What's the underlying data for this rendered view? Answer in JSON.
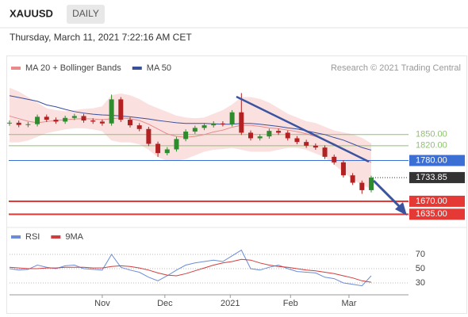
{
  "header": {
    "symbol": "XAUUSD",
    "period": "DAILY",
    "timestamp": "Thursday, March 11, 2021 7:22:16 AM CET"
  },
  "chart_data": [
    {
      "type": "candlestick",
      "credit": "Research © 2021 Trading Central",
      "xlim": [
        0,
        39
      ],
      "ylim": [
        1610,
        2010
      ],
      "up_color": "#2e8b2e",
      "down_color": "#b22222",
      "open": [
        1880,
        1882,
        1876,
        1878,
        1898,
        1890,
        1885,
        1895,
        1900,
        1888,
        1885,
        1880,
        1945,
        1890,
        1875,
        1865,
        1825,
        1800,
        1810,
        1838,
        1858,
        1868,
        1875,
        1880,
        1878,
        1910,
        1855,
        1840,
        1845,
        1860,
        1855,
        1840,
        1830,
        1820,
        1815,
        1790,
        1775,
        1740,
        1720,
        1700
      ],
      "high": [
        1888,
        1888,
        1884,
        1904,
        1904,
        1896,
        1901,
        1906,
        1906,
        1894,
        1891,
        1958,
        1951,
        1896,
        1881,
        1871,
        1831,
        1816,
        1844,
        1864,
        1874,
        1881,
        1886,
        1886,
        1916,
        1962,
        1861,
        1851,
        1866,
        1866,
        1861,
        1846,
        1836,
        1826,
        1821,
        1796,
        1781,
        1746,
        1726,
        1739
      ],
      "low": [
        1874,
        1870,
        1870,
        1872,
        1884,
        1879,
        1879,
        1889,
        1882,
        1879,
        1874,
        1874,
        1884,
        1869,
        1859,
        1819,
        1790,
        1794,
        1804,
        1832,
        1852,
        1862,
        1869,
        1872,
        1872,
        1849,
        1834,
        1834,
        1839,
        1849,
        1834,
        1824,
        1814,
        1809,
        1784,
        1769,
        1734,
        1714,
        1690,
        1694
      ],
      "close": [
        1882,
        1876,
        1878,
        1898,
        1890,
        1885,
        1895,
        1900,
        1888,
        1885,
        1880,
        1945,
        1890,
        1875,
        1865,
        1825,
        1800,
        1810,
        1838,
        1858,
        1868,
        1875,
        1880,
        1878,
        1910,
        1855,
        1840,
        1845,
        1860,
        1855,
        1840,
        1830,
        1820,
        1815,
        1790,
        1775,
        1740,
        1720,
        1700,
        1733.85
      ],
      "series": [
        {
          "name": "MA 20 + Bollinger Bands",
          "color": "#e88a8a",
          "band_color": "#fbe0e0",
          "values": [
            1900,
            1893,
            1886,
            1882,
            1885,
            1888,
            1890,
            1892,
            1893,
            1892,
            1890,
            1893,
            1895,
            1893,
            1888,
            1878,
            1865,
            1852,
            1845,
            1843,
            1845,
            1850,
            1857,
            1862,
            1870,
            1875,
            1875,
            1872,
            1868,
            1866,
            1862,
            1858,
            1852,
            1845,
            1836,
            1825,
            1812,
            1800,
            1786,
            1775
          ],
          "upper": [
            1975,
            1965,
            1950,
            1935,
            1920,
            1915,
            1912,
            1915,
            1918,
            1920,
            1925,
            1955,
            1960,
            1955,
            1945,
            1930,
            1920,
            1910,
            1900,
            1895,
            1893,
            1895,
            1905,
            1915,
            1930,
            1950,
            1950,
            1945,
            1935,
            1920,
            1905,
            1895,
            1885,
            1880,
            1870,
            1860,
            1855,
            1850,
            1840,
            1825
          ],
          "lower": [
            1830,
            1830,
            1835,
            1845,
            1855,
            1860,
            1865,
            1868,
            1868,
            1865,
            1860,
            1835,
            1830,
            1830,
            1825,
            1810,
            1790,
            1780,
            1780,
            1785,
            1795,
            1805,
            1810,
            1812,
            1815,
            1810,
            1805,
            1805,
            1805,
            1810,
            1815,
            1815,
            1810,
            1800,
            1790,
            1770,
            1750,
            1730,
            1715,
            1705
          ]
        },
        {
          "name": "MA 50",
          "color": "#3a4f9a",
          "values": [
            1955,
            1950,
            1945,
            1940,
            1930,
            1925,
            1918,
            1912,
            1908,
            1905,
            1903,
            1902,
            1900,
            1898,
            1895,
            1892,
            1888,
            1885,
            1882,
            1880,
            1880,
            1880,
            1879,
            1878,
            1878,
            1880,
            1880,
            1878,
            1875,
            1872,
            1868,
            1865,
            1860,
            1855,
            1850,
            1842,
            1835,
            1825,
            1815,
            1808
          ]
        }
      ],
      "levels": [
        {
          "value": 1850,
          "label": "1850.00",
          "color": "#8dc26f",
          "box": false,
          "line": "solid"
        },
        {
          "value": 1820,
          "label": "1820.00",
          "color": "#8dc26f",
          "box": false,
          "line": "solid"
        },
        {
          "value": 1780,
          "label": "1780.00",
          "color": "#3b6fd4",
          "box": true,
          "line": "solid"
        },
        {
          "value": 1733.85,
          "label": "1733.85",
          "color": "#333333",
          "box": true,
          "line": "dotted"
        },
        {
          "value": 1670,
          "label": "1670.00",
          "color": "#e53935",
          "box": true,
          "line": "thick"
        },
        {
          "value": 1635,
          "label": "1635.00",
          "color": "#e53935",
          "box": true,
          "line": "thick"
        }
      ]
    },
    {
      "type": "line",
      "xlim": [
        0,
        39
      ],
      "ylim": [
        15,
        85
      ],
      "yticks": [
        70,
        50,
        30
      ],
      "grid": true,
      "xticks": [
        {
          "value": 10,
          "label": "Nov"
        },
        {
          "value": 16.75,
          "label": "Dec"
        },
        {
          "value": 23.8,
          "label": "2021"
        },
        {
          "value": 30.3,
          "label": "Feb"
        },
        {
          "value": 36.6,
          "label": "Mar"
        }
      ],
      "series": [
        {
          "name": "RSI",
          "color": "#6b8cd8",
          "values": [
            50,
            48,
            49,
            55,
            52,
            50,
            54,
            55,
            50,
            49,
            48,
            70,
            52,
            48,
            45,
            38,
            33,
            40,
            48,
            55,
            58,
            60,
            62,
            60,
            68,
            76,
            50,
            48,
            52,
            55,
            50,
            46,
            45,
            44,
            38,
            36,
            30,
            28,
            26,
            40
          ]
        },
        {
          "name": "9MA",
          "color": "#d33c3c",
          "values": [
            52,
            51,
            50,
            50,
            51,
            51,
            52,
            52,
            52,
            51,
            51,
            53,
            54,
            53,
            51,
            48,
            44,
            41,
            40,
            43,
            47,
            51,
            55,
            58,
            60,
            63,
            62,
            58,
            55,
            53,
            52,
            50,
            48,
            47,
            45,
            43,
            40,
            37,
            33,
            31
          ]
        }
      ]
    }
  ]
}
